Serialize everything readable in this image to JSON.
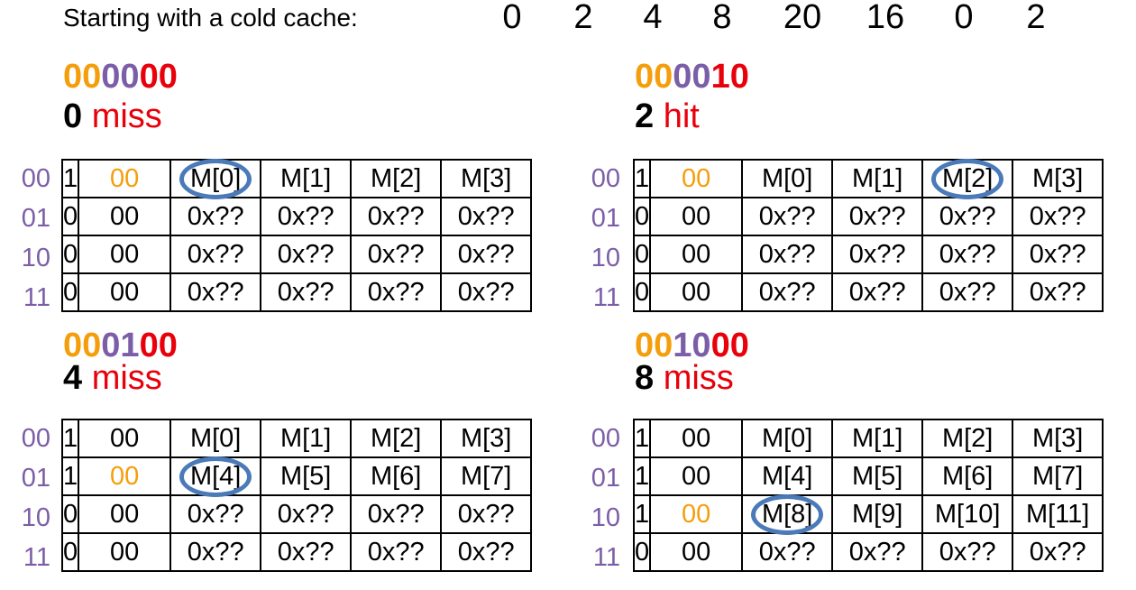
{
  "header": {
    "label": "Starting with a cold cache:",
    "sequence": [
      "0",
      "2",
      "4",
      "8",
      "20",
      "16",
      "0",
      "2"
    ]
  },
  "colors": {
    "tag": "#F59E0B",
    "index": "#7B5EA7",
    "offset": "#E8000B",
    "highlight_circle": "#4A7AB8"
  },
  "row_labels": [
    "00",
    "01",
    "10",
    "11"
  ],
  "panels": [
    {
      "address": {
        "tag": "00",
        "index": "00",
        "offset": "00"
      },
      "access": "0",
      "outcome": "miss",
      "rows": [
        {
          "valid": "1",
          "tag": "00",
          "data": [
            "M[0]",
            "M[1]",
            "M[2]",
            "M[3]"
          ]
        },
        {
          "valid": "0",
          "tag": "00",
          "data": [
            "0x??",
            "0x??",
            "0x??",
            "0x??"
          ]
        },
        {
          "valid": "0",
          "tag": "00",
          "data": [
            "0x??",
            "0x??",
            "0x??",
            "0x??"
          ]
        },
        {
          "valid": "0",
          "tag": "00",
          "data": [
            "0x??",
            "0x??",
            "0x??",
            "0x??"
          ]
        }
      ],
      "highlight": {
        "row": 0,
        "col": 0
      }
    },
    {
      "address": {
        "tag": "00",
        "index": "00",
        "offset": "10"
      },
      "access": "2",
      "outcome": "hit",
      "rows": [
        {
          "valid": "1",
          "tag": "00",
          "data": [
            "M[0]",
            "M[1]",
            "M[2]",
            "M[3]"
          ]
        },
        {
          "valid": "0",
          "tag": "00",
          "data": [
            "0x??",
            "0x??",
            "0x??",
            "0x??"
          ]
        },
        {
          "valid": "0",
          "tag": "00",
          "data": [
            "0x??",
            "0x??",
            "0x??",
            "0x??"
          ]
        },
        {
          "valid": "0",
          "tag": "00",
          "data": [
            "0x??",
            "0x??",
            "0x??",
            "0x??"
          ]
        }
      ],
      "highlight": {
        "row": 0,
        "col": 2
      }
    },
    {
      "address": {
        "tag": "00",
        "index": "01",
        "offset": "00"
      },
      "access": "4",
      "outcome": "miss",
      "rows": [
        {
          "valid": "1",
          "tag": "00",
          "data": [
            "M[0]",
            "M[1]",
            "M[2]",
            "M[3]"
          ]
        },
        {
          "valid": "1",
          "tag": "00",
          "data": [
            "M[4]",
            "M[5]",
            "M[6]",
            "M[7]"
          ]
        },
        {
          "valid": "0",
          "tag": "00",
          "data": [
            "0x??",
            "0x??",
            "0x??",
            "0x??"
          ]
        },
        {
          "valid": "0",
          "tag": "00",
          "data": [
            "0x??",
            "0x??",
            "0x??",
            "0x??"
          ]
        }
      ],
      "highlight": {
        "row": 1,
        "col": 0
      }
    },
    {
      "address": {
        "tag": "00",
        "index": "10",
        "offset": "00"
      },
      "access": "8",
      "outcome": "miss",
      "rows": [
        {
          "valid": "1",
          "tag": "00",
          "data": [
            "M[0]",
            "M[1]",
            "M[2]",
            "M[3]"
          ]
        },
        {
          "valid": "1",
          "tag": "00",
          "data": [
            "M[4]",
            "M[5]",
            "M[6]",
            "M[7]"
          ]
        },
        {
          "valid": "1",
          "tag": "00",
          "data": [
            "M[8]",
            "M[9]",
            "M[10]",
            "M[11]"
          ]
        },
        {
          "valid": "0",
          "tag": "00",
          "data": [
            "0x??",
            "0x??",
            "0x??",
            "0x??"
          ]
        }
      ],
      "highlight": {
        "row": 2,
        "col": 0
      }
    }
  ]
}
